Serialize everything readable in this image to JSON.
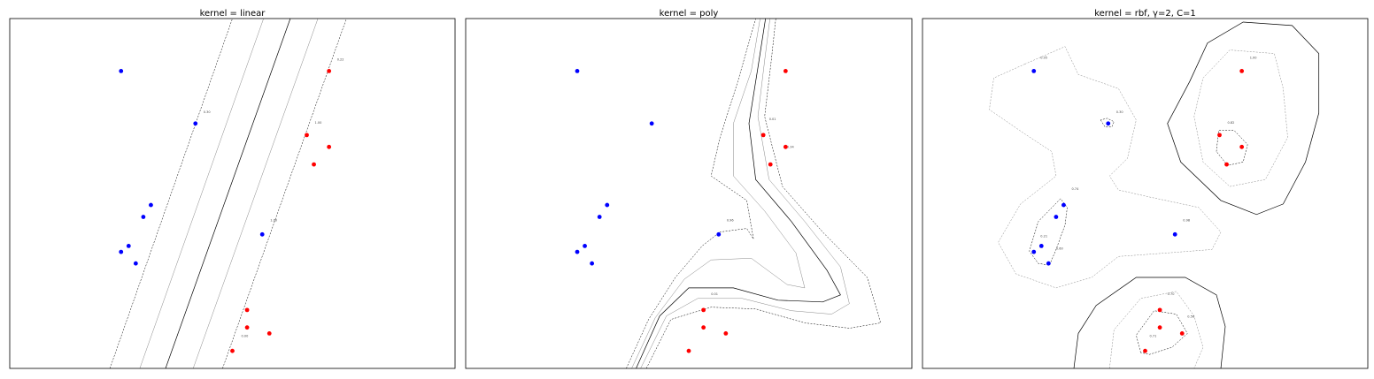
{
  "colors": {
    "class_neg": "#0000ff",
    "class_pos": "#ff0000",
    "boundary": "#000000",
    "margin": "#888888",
    "background": "#ffffff"
  },
  "chart_data": [
    {
      "type": "scatter",
      "title": "kernel = linear",
      "xlim": [
        0,
        10
      ],
      "ylim": [
        0,
        10
      ],
      "grid": false,
      "ticks": false,
      "series": [
        {
          "class": "negative",
          "color": "#0000ff",
          "points": [
            [
              2.5,
              8.5
            ],
            [
              4.17,
              7.0
            ],
            [
              3.17,
              4.67
            ],
            [
              3.0,
              4.33
            ],
            [
              2.67,
              3.5
            ],
            [
              2.5,
              3.33
            ],
            [
              2.83,
              3.0
            ],
            [
              5.67,
              3.83
            ]
          ]
        },
        {
          "class": "positive",
          "color": "#ff0000",
          "points": [
            [
              7.17,
              8.5
            ],
            [
              6.67,
              6.67
            ],
            [
              7.17,
              6.33
            ],
            [
              6.83,
              5.83
            ],
            [
              5.33,
              1.67
            ],
            [
              5.33,
              1.17
            ],
            [
              5.83,
              1.0
            ],
            [
              5.0,
              0.5
            ]
          ]
        }
      ],
      "contours": [
        {
          "level": "boundary",
          "style": "solid",
          "line": [
            [
              3.5,
              0
            ],
            [
              6.3,
              10
            ]
          ]
        },
        {
          "level": "margin-1",
          "style": "solid-thin",
          "line": [
            [
              2.92,
              0
            ],
            [
              5.7,
              10
            ]
          ]
        },
        {
          "level": "margin+1",
          "style": "solid-thin",
          "line": [
            [
              4.12,
              0
            ],
            [
              6.92,
              10
            ]
          ]
        },
        {
          "level": "support-1",
          "style": "dashed",
          "line": [
            [
              2.25,
              0
            ],
            [
              5.0,
              10
            ]
          ]
        },
        {
          "level": "support+1",
          "style": "dashed",
          "line": [
            [
              4.78,
              0
            ],
            [
              7.56,
              10
            ]
          ]
        }
      ],
      "annotations": [
        {
          "text": "0.22",
          "x": 7.35,
          "y": 8.8
        },
        {
          "text": "0.30",
          "x": 4.35,
          "y": 7.3
        },
        {
          "text": "1.00",
          "x": 6.85,
          "y": 7.0
        },
        {
          "text": "1.00",
          "x": 5.85,
          "y": 4.2
        },
        {
          "text": "0.00",
          "x": 5.2,
          "y": 0.9
        }
      ]
    },
    {
      "type": "scatter",
      "title": "kernel = poly",
      "xlim": [
        0,
        10
      ],
      "ylim": [
        0,
        10
      ],
      "grid": false,
      "ticks": false,
      "series": [
        {
          "class": "negative",
          "color": "#0000ff",
          "points": [
            [
              2.5,
              8.5
            ],
            [
              4.17,
              7.0
            ],
            [
              3.17,
              4.67
            ],
            [
              3.0,
              4.33
            ],
            [
              2.67,
              3.5
            ],
            [
              2.5,
              3.33
            ],
            [
              2.83,
              3.0
            ],
            [
              5.67,
              3.83
            ]
          ]
        },
        {
          "class": "positive",
          "color": "#ff0000",
          "points": [
            [
              7.17,
              8.5
            ],
            [
              6.67,
              6.67
            ],
            [
              7.17,
              6.33
            ],
            [
              6.83,
              5.83
            ],
            [
              5.33,
              1.67
            ],
            [
              5.33,
              1.17
            ],
            [
              5.83,
              1.0
            ],
            [
              5.0,
              0.5
            ]
          ]
        }
      ],
      "contours": [
        {
          "level": "support-1",
          "style": "dashed",
          "line": [
            [
              3.6,
              0
            ],
            [
              4.1,
              1.4
            ],
            [
              4.7,
              2.6
            ],
            [
              5.3,
              3.5
            ],
            [
              5.7,
              3.9
            ],
            [
              6.3,
              4.0
            ],
            [
              6.45,
              3.7
            ],
            [
              6.3,
              4.8
            ],
            [
              5.5,
              5.5
            ],
            [
              5.7,
              6.6
            ],
            [
              6.1,
              8.2
            ],
            [
              6.5,
              10
            ]
          ]
        },
        {
          "level": "margin-1",
          "style": "solid-thin",
          "line": [
            [
              3.72,
              0
            ],
            [
              4.25,
              1.45
            ],
            [
              4.9,
              2.55
            ],
            [
              5.5,
              3.1
            ],
            [
              6.4,
              3.15
            ],
            [
              7.2,
              2.4
            ],
            [
              7.6,
              2.3
            ],
            [
              7.4,
              3.3
            ],
            [
              6.7,
              4.5
            ],
            [
              6.0,
              5.5
            ],
            [
              6.0,
              7.0
            ],
            [
              6.4,
              8.5
            ],
            [
              6.6,
              10
            ]
          ]
        },
        {
          "level": "boundary",
          "style": "solid",
          "line": [
            [
              3.82,
              0
            ],
            [
              4.35,
              1.5
            ],
            [
              5.0,
              2.3
            ],
            [
              6.0,
              2.3
            ],
            [
              7.0,
              1.95
            ],
            [
              8.0,
              1.9
            ],
            [
              8.4,
              2.1
            ],
            [
              8.1,
              2.8
            ],
            [
              7.3,
              4.2
            ],
            [
              6.5,
              5.4
            ],
            [
              6.35,
              7.0
            ],
            [
              6.55,
              8.6
            ],
            [
              6.72,
              10
            ]
          ]
        },
        {
          "level": "margin+1",
          "style": "solid-thin",
          "line": [
            [
              3.92,
              0
            ],
            [
              4.5,
              1.5
            ],
            [
              5.2,
              2.0
            ],
            [
              6.2,
              2.0
            ],
            [
              7.3,
              1.65
            ],
            [
              8.2,
              1.55
            ],
            [
              8.6,
              1.85
            ],
            [
              8.4,
              2.9
            ],
            [
              7.6,
              4.2
            ],
            [
              6.8,
              5.4
            ],
            [
              6.55,
              7.2
            ],
            [
              6.7,
              8.8
            ],
            [
              6.82,
              10
            ]
          ]
        },
        {
          "level": "support+1",
          "style": "dashed",
          "line": [
            [
              4.05,
              0
            ],
            [
              4.6,
              1.4
            ],
            [
              5.5,
              1.75
            ],
            [
              6.5,
              1.7
            ],
            [
              7.6,
              1.3
            ],
            [
              8.6,
              1.15
            ],
            [
              9.3,
              1.3
            ],
            [
              9.0,
              2.6
            ],
            [
              8.0,
              3.9
            ],
            [
              7.1,
              5.2
            ],
            [
              6.7,
              7.2
            ],
            [
              6.85,
              8.8
            ],
            [
              6.95,
              10
            ]
          ]
        }
      ],
      "annotations": [
        {
          "text": "0.01",
          "x": 6.8,
          "y": 7.1
        },
        {
          "text": "0.34",
          "x": 7.2,
          "y": 6.3
        },
        {
          "text": "0.96",
          "x": 5.85,
          "y": 4.2
        },
        {
          "text": "0.01",
          "x": 5.5,
          "y": 2.1
        }
      ]
    },
    {
      "type": "scatter",
      "title": "kernel = rbf, γ=2, C=1",
      "xlim": [
        0,
        10
      ],
      "ylim": [
        0,
        10
      ],
      "grid": false,
      "ticks": false,
      "series": [
        {
          "class": "negative",
          "color": "#0000ff",
          "points": [
            [
              2.5,
              8.5
            ],
            [
              4.17,
              7.0
            ],
            [
              3.17,
              4.67
            ],
            [
              3.0,
              4.33
            ],
            [
              2.67,
              3.5
            ],
            [
              2.5,
              3.33
            ],
            [
              2.83,
              3.0
            ],
            [
              5.67,
              3.83
            ]
          ]
        },
        {
          "class": "positive",
          "color": "#ff0000",
          "points": [
            [
              7.17,
              8.5
            ],
            [
              6.67,
              6.67
            ],
            [
              7.17,
              6.33
            ],
            [
              6.83,
              5.83
            ],
            [
              5.33,
              1.67
            ],
            [
              5.33,
              1.17
            ],
            [
              5.83,
              1.0
            ],
            [
              5.0,
              0.5
            ]
          ]
        }
      ],
      "contours": [
        {
          "level": "boundary-top-right",
          "style": "solid",
          "line": [
            [
              6.0,
              8.2
            ],
            [
              6.4,
              9.3
            ],
            [
              7.2,
              9.9
            ],
            [
              8.3,
              9.8
            ],
            [
              8.9,
              9.0
            ],
            [
              8.9,
              7.3
            ],
            [
              8.6,
              5.9
            ],
            [
              8.1,
              4.7
            ],
            [
              7.5,
              4.4
            ],
            [
              6.7,
              4.8
            ],
            [
              5.8,
              5.9
            ],
            [
              5.5,
              7.0
            ],
            [
              6.0,
              8.2
            ]
          ]
        },
        {
          "level": "margin-top-right",
          "style": "dashed-thin",
          "line": [
            [
              6.3,
              8.3
            ],
            [
              6.9,
              9.1
            ],
            [
              7.9,
              9.0
            ],
            [
              8.1,
              8.0
            ],
            [
              8.2,
              6.6
            ],
            [
              7.7,
              5.4
            ],
            [
              6.9,
              5.2
            ],
            [
              6.3,
              5.9
            ],
            [
              6.1,
              7.2
            ],
            [
              6.3,
              8.3
            ]
          ]
        },
        {
          "level": "support-top-right",
          "style": "dashed",
          "line": [
            [
              6.6,
              6.2
            ],
            [
              6.65,
              6.8
            ],
            [
              7.0,
              6.8
            ],
            [
              7.3,
              6.4
            ],
            [
              7.2,
              5.9
            ],
            [
              6.85,
              5.8
            ],
            [
              6.6,
              6.2
            ]
          ]
        },
        {
          "level": "boundary-bottom",
          "style": "solid",
          "line": [
            [
              3.4,
              0
            ],
            [
              3.5,
              1.0
            ],
            [
              3.9,
              1.8
            ],
            [
              4.8,
              2.6
            ],
            [
              5.9,
              2.6
            ],
            [
              6.6,
              2.1
            ],
            [
              6.8,
              1.2
            ],
            [
              6.7,
              0
            ]
          ]
        },
        {
          "level": "margin-bottom",
          "style": "dashed-thin",
          "line": [
            [
              4.2,
              0
            ],
            [
              4.3,
              1.1
            ],
            [
              4.9,
              2.0
            ],
            [
              5.7,
              2.2
            ],
            [
              6.1,
              1.5
            ],
            [
              6.3,
              0.6
            ],
            [
              6.1,
              0
            ]
          ]
        },
        {
          "level": "support-bottom",
          "style": "dashed",
          "line": [
            [
              4.9,
              0.45
            ],
            [
              4.8,
              0.95
            ],
            [
              5.2,
              1.65
            ],
            [
              5.7,
              1.55
            ],
            [
              5.95,
              1.0
            ],
            [
              5.6,
              0.6
            ],
            [
              5.1,
              0.4
            ],
            [
              4.9,
              0.45
            ]
          ]
        },
        {
          "level": "margin-neg-region",
          "style": "dashed-thin",
          "line": [
            [
              2.3,
              8.7
            ],
            [
              1.6,
              8.3
            ],
            [
              1.5,
              7.4
            ],
            [
              2.3,
              6.7
            ],
            [
              2.9,
              6.2
            ],
            [
              3.0,
              5.5
            ],
            [
              2.2,
              4.7
            ],
            [
              1.7,
              3.6
            ],
            [
              2.1,
              2.7
            ],
            [
              3.0,
              2.3
            ],
            [
              3.8,
              2.6
            ],
            [
              4.4,
              3.2
            ],
            [
              5.5,
              3.3
            ],
            [
              6.5,
              3.4
            ],
            [
              6.7,
              3.9
            ],
            [
              6.2,
              4.6
            ],
            [
              5.1,
              4.9
            ],
            [
              4.4,
              5.1
            ],
            [
              4.2,
              5.5
            ],
            [
              4.6,
              6.0
            ],
            [
              4.8,
              7.1
            ],
            [
              4.4,
              8.0
            ],
            [
              3.5,
              8.4
            ],
            [
              3.2,
              9.2
            ],
            [
              2.3,
              8.7
            ]
          ]
        },
        {
          "level": "support-neg-cluster",
          "style": "dashed",
          "line": [
            [
              3.1,
              4.85
            ],
            [
              2.6,
              4.2
            ],
            [
              2.4,
              3.35
            ],
            [
              2.6,
              3.0
            ],
            [
              2.85,
              2.95
            ],
            [
              3.0,
              3.4
            ],
            [
              3.2,
              4.1
            ],
            [
              3.25,
              4.6
            ],
            [
              3.1,
              4.85
            ]
          ]
        },
        {
          "level": "support-neg-point",
          "style": "dashed",
          "line": [
            [
              4.0,
              7.1
            ],
            [
              4.1,
              6.9
            ],
            [
              4.25,
              6.9
            ],
            [
              4.3,
              7.05
            ],
            [
              4.15,
              7.15
            ],
            [
              4.0,
              7.1
            ]
          ]
        }
      ],
      "annotations": [
        {
          "text": "0.05",
          "x": 2.65,
          "y": 8.85
        },
        {
          "text": "1.00",
          "x": 7.35,
          "y": 8.85
        },
        {
          "text": "0.30",
          "x": 4.35,
          "y": 7.3
        },
        {
          "text": "0.82",
          "x": 6.85,
          "y": 7.0
        },
        {
          "text": "0.74",
          "x": 3.35,
          "y": 5.1
        },
        {
          "text": "0.98",
          "x": 5.85,
          "y": 4.2
        },
        {
          "text": "0.21",
          "x": 2.65,
          "y": 3.75
        },
        {
          "text": "0.60",
          "x": 3.0,
          "y": 3.4
        },
        {
          "text": "0.70",
          "x": 5.5,
          "y": 2.1
        },
        {
          "text": "0.56",
          "x": 5.95,
          "y": 1.45
        },
        {
          "text": "0.71",
          "x": 5.1,
          "y": 0.9
        }
      ]
    }
  ]
}
